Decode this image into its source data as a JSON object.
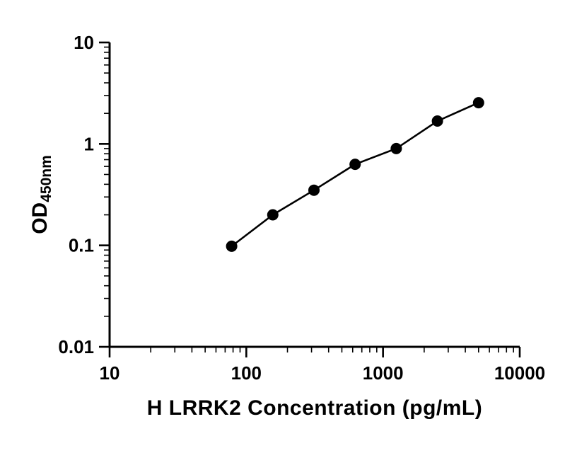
{
  "chart_data": {
    "type": "scatter",
    "title": "",
    "xlabel": "H LRRK2 Concentration (pg/mL)",
    "ylabel": "OD450nm",
    "ylabel_main": "OD",
    "ylabel_sub": "450nm",
    "x_scale": "log10",
    "y_scale": "log10",
    "xlim": [
      10,
      10000
    ],
    "ylim": [
      0.01,
      10
    ],
    "x_ticks": [
      10,
      100,
      1000,
      10000
    ],
    "x_tick_labels": [
      "10",
      "100",
      "1000",
      "10000"
    ],
    "y_ticks": [
      0.01,
      0.1,
      1,
      10
    ],
    "y_tick_labels": [
      "0.01",
      "0.1",
      "1",
      "10"
    ],
    "grid": false,
    "legend": false,
    "background_color": "#ffffff",
    "axis_color": "#000000",
    "series": [
      {
        "marker": "filled-circle",
        "color": "#000000",
        "line": true,
        "x": [
          78.1,
          156.3,
          312.5,
          625,
          1250,
          2500,
          5000
        ],
        "y": [
          0.098,
          0.2,
          0.35,
          0.63,
          0.9,
          1.68,
          2.55
        ]
      }
    ]
  }
}
